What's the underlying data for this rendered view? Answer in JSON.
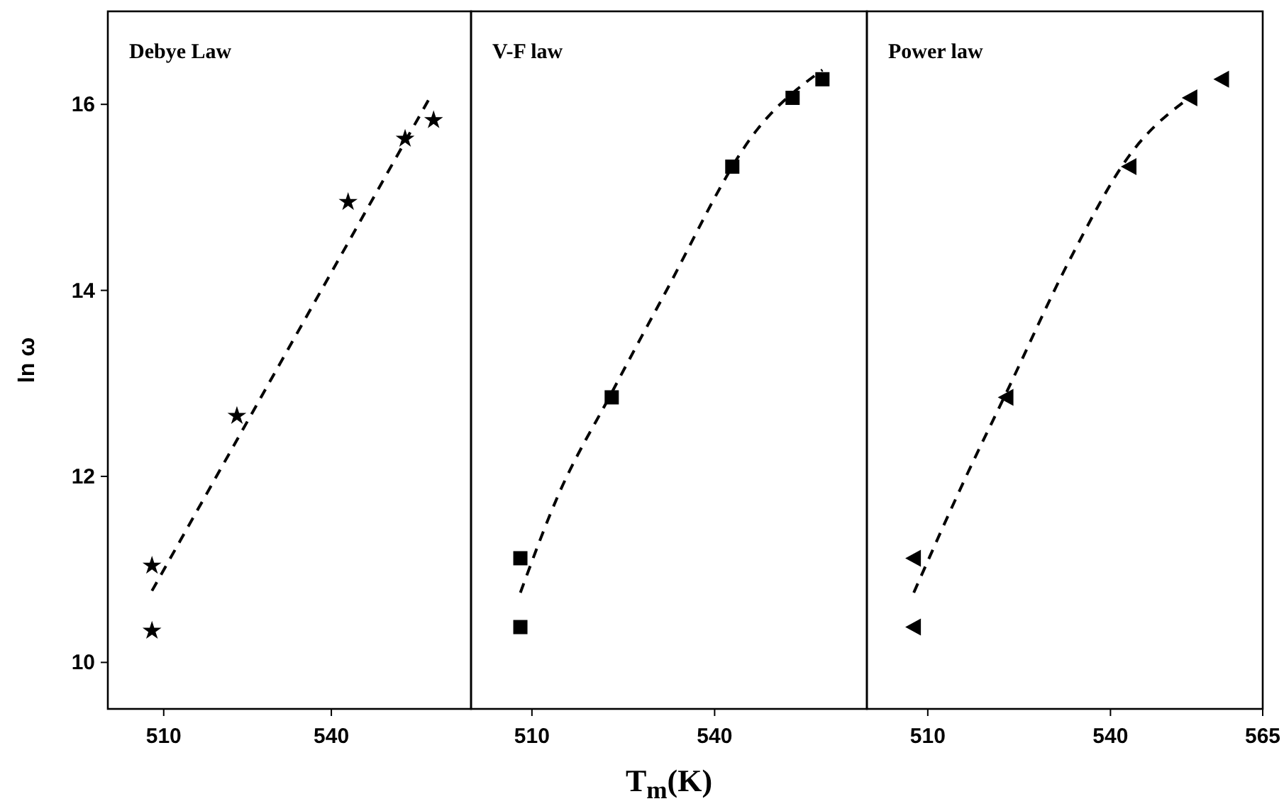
{
  "chart_data": [
    {
      "type": "scatter",
      "title": "Debye Law",
      "ylabel": "ln ω",
      "xlim": [
        500,
        565
      ],
      "xticks": [
        510,
        540
      ],
      "ylim": [
        9.5,
        17
      ],
      "yticks": [
        10,
        12,
        14,
        16
      ],
      "grid": false,
      "series": [
        {
          "type": "scatter",
          "color": "#000000",
          "marker": "star",
          "x": [
            507.9,
            507.9,
            523.1,
            543.0,
            553.2,
            558.3
          ],
          "values": [
            11.04,
            10.34,
            12.65,
            14.95,
            15.63,
            15.83
          ]
        },
        {
          "type": "line",
          "color": "#000000",
          "marker": "none",
          "line_style": "dashed",
          "x": [
            507.9,
            557.7
          ],
          "values": [
            10.77,
            16.08
          ]
        }
      ]
    },
    {
      "type": "scatter",
      "title": "V-F law",
      "xlabel": "T$_{m}$(K)",
      "xlim": [
        500,
        565
      ],
      "xticks": [
        510,
        540
      ],
      "ylim": [
        9.5,
        17
      ],
      "tick_labels": "x",
      "grid": false,
      "series": [
        {
          "type": "scatter",
          "color": "#000000",
          "marker": "square",
          "x": [
            508.1,
            508.1,
            523.1,
            542.9,
            552.8,
            557.7
          ],
          "values": [
            11.12,
            10.38,
            12.85,
            15.33,
            16.07,
            16.27
          ]
        },
        {
          "type": "line",
          "color": "#000000",
          "marker": "none",
          "line_style": "dashed",
          "x": [
            508.1,
            514.2,
            523.1,
            531.2,
            547.0,
            557.7
          ],
          "values": [
            10.75,
            11.78,
            12.9,
            13.89,
            15.73,
            16.37
          ]
        }
      ]
    },
    {
      "type": "scatter",
      "title": "Power law",
      "xlim": [
        500,
        565
      ],
      "xticks": [
        510,
        540,
        565
      ],
      "ylim": [
        9.5,
        17
      ],
      "tick_labels": "x",
      "grid": false,
      "series": [
        {
          "type": "scatter",
          "color": "#000000",
          "marker": "triangle",
          "x": [
            507.7,
            507.7,
            522.9,
            543.1,
            553.1,
            558.3
          ],
          "values": [
            11.12,
            10.38,
            12.85,
            15.33,
            16.07,
            16.27
          ]
        },
        {
          "type": "line",
          "color": "#000000",
          "marker": "none",
          "line_style": "dashed",
          "x": [
            507.7,
            516.3,
            522.9,
            533.4,
            543.1,
            554.0
          ],
          "values": [
            10.75,
            12.0,
            12.9,
            14.34,
            15.45,
            16.12
          ]
        }
      ]
    }
  ]
}
